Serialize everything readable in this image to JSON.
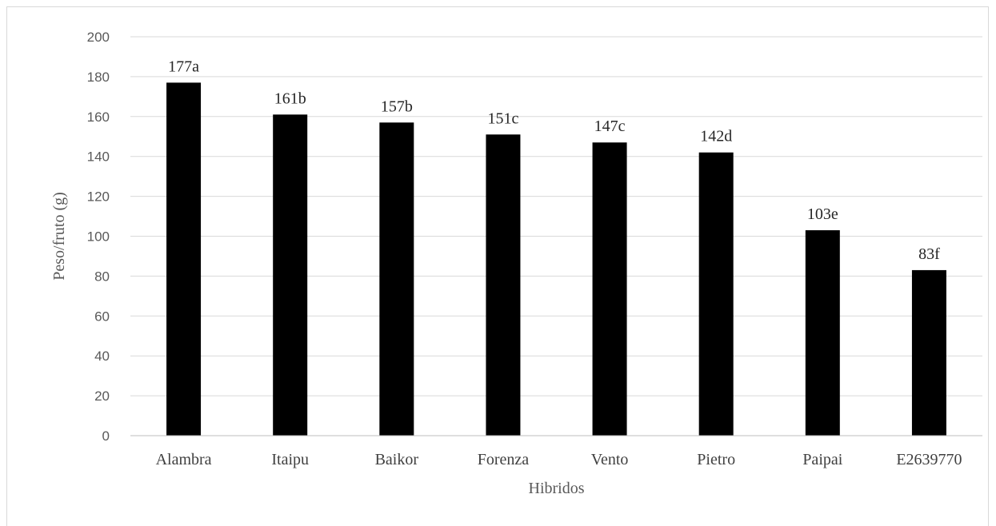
{
  "chart_data": {
    "type": "bar",
    "categories": [
      "Alambra",
      "Itaipu",
      "Baikor",
      "Forenza",
      "Vento",
      "Pietro",
      "Paipai",
      "E2639770"
    ],
    "values": [
      177,
      161,
      157,
      151,
      147,
      142,
      103,
      83
    ],
    "data_labels": [
      "177a",
      "161b",
      "157b",
      "151c",
      "147c",
      "142d",
      "103e",
      "83f"
    ],
    "xlabel": "Hibridos",
    "ylabel": "Peso/fruto (g)",
    "ylim": [
      0,
      200
    ],
    "yticks": [
      0,
      20,
      40,
      60,
      80,
      100,
      120,
      140,
      160,
      180,
      200
    ],
    "grid": true,
    "legend": "none",
    "colors": {
      "bar": "#000000",
      "grid": "#d9d9d9",
      "axis": "#bfbfbf"
    }
  }
}
